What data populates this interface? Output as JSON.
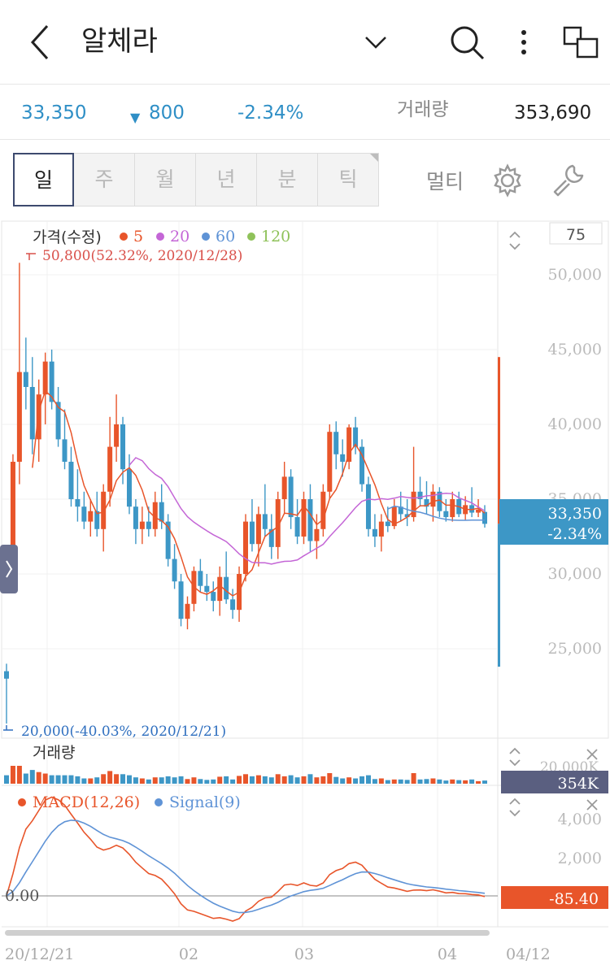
{
  "header": {
    "title": "알체라"
  },
  "quote": {
    "price": "33,350",
    "change": "800",
    "change_pct": "-2.34%",
    "volume_label": "거래량",
    "volume": "353,690"
  },
  "tabs": [
    {
      "label": "일",
      "active": true
    },
    {
      "label": "주",
      "active": false
    },
    {
      "label": "월",
      "active": false
    },
    {
      "label": "년",
      "active": false
    },
    {
      "label": "분",
      "active": false
    },
    {
      "label": "틱",
      "active": false
    }
  ],
  "multi_label": "멀티",
  "colors": {
    "up": "#e8552a",
    "down": "#3d97c6",
    "ma5": "#e8552a",
    "ma20": "#c466d6",
    "ma60": "#5f93d6",
    "ma120": "#8fc25a",
    "current_price_bg": "#3d97c6",
    "volume_badge_bg": "#5a5f80",
    "macd_badge_bg": "#e8552a"
  },
  "chart_data": {
    "type": "candlestick",
    "price_panel": {
      "legend_title": "가격(수정)",
      "ma_labels": [
        "5",
        "20",
        "60",
        "120"
      ],
      "bars_visible": "75",
      "high_annotation": "50,800(52.32%, 2020/12/28)",
      "low_annotation": "20,000(-40.03%, 2020/12/21)",
      "y_ticks": [
        "50,000",
        "45,000",
        "40,000",
        "35,000",
        "30,000",
        "25,000"
      ],
      "current_price": "33,350",
      "current_pct": "-2.34%",
      "ohlc": [
        [
          23500,
          24000,
          20000,
          23000
        ],
        [
          30000,
          38000,
          29500,
          37500
        ],
        [
          37500,
          50800,
          36000,
          43500
        ],
        [
          43500,
          45800,
          41000,
          42500
        ],
        [
          42500,
          44500,
          38000,
          39000
        ],
        [
          39000,
          43000,
          37500,
          42000
        ],
        [
          42000,
          44800,
          40000,
          44200
        ],
        [
          44200,
          45000,
          41000,
          41500
        ],
        [
          41500,
          42500,
          38500,
          39000
        ],
        [
          39000,
          41000,
          37000,
          37500
        ],
        [
          37500,
          38500,
          34500,
          35000
        ],
        [
          35000,
          37000,
          33500,
          34500
        ],
        [
          34500,
          35500,
          33000,
          33500
        ],
        [
          33500,
          35000,
          32500,
          34200
        ],
        [
          34200,
          35500,
          32500,
          33000
        ],
        [
          33000,
          36000,
          31500,
          35500
        ],
        [
          35500,
          40500,
          34500,
          38500
        ],
        [
          38500,
          42000,
          37500,
          40000
        ],
        [
          40000,
          40500,
          36000,
          37000
        ],
        [
          37000,
          38000,
          34000,
          34500
        ],
        [
          34500,
          35000,
          32000,
          33000
        ],
        [
          33000,
          34500,
          32000,
          33500
        ],
        [
          33500,
          34500,
          32500,
          33000
        ],
        [
          33000,
          35500,
          32500,
          34800
        ],
        [
          34800,
          36000,
          33000,
          33500
        ],
        [
          33500,
          34000,
          30500,
          31000
        ],
        [
          31000,
          32000,
          29000,
          29500
        ],
        [
          29500,
          30000,
          26500,
          27000
        ],
        [
          27000,
          28500,
          26300,
          28000
        ],
        [
          28000,
          30500,
          27500,
          30200
        ],
        [
          30200,
          31000,
          28800,
          29200
        ],
        [
          29200,
          30000,
          28200,
          28800
        ],
        [
          28800,
          29500,
          27500,
          28200
        ],
        [
          28200,
          30500,
          27200,
          29800
        ],
        [
          29800,
          31500,
          28000,
          28300
        ],
        [
          28300,
          29000,
          27000,
          27600
        ],
        [
          27600,
          30500,
          26800,
          30000
        ],
        [
          30000,
          34000,
          29500,
          33500
        ],
        [
          33500,
          35000,
          31500,
          32000
        ],
        [
          32000,
          34500,
          30500,
          34000
        ],
        [
          34000,
          36000,
          32500,
          33000
        ],
        [
          33000,
          34000,
          31000,
          31800
        ],
        [
          31800,
          35500,
          31000,
          35000
        ],
        [
          35000,
          37500,
          34000,
          36500
        ],
        [
          36500,
          37000,
          33000,
          33800
        ],
        [
          33800,
          35000,
          32000,
          32500
        ],
        [
          32500,
          35500,
          32000,
          35000
        ],
        [
          35000,
          36000,
          31500,
          32200
        ],
        [
          32200,
          34000,
          31000,
          33000
        ],
        [
          33000,
          36000,
          32500,
          35500
        ],
        [
          35500,
          40000,
          35000,
          39500
        ],
        [
          39500,
          40200,
          37000,
          38000
        ],
        [
          38000,
          39000,
          36500,
          37500
        ],
        [
          37500,
          40000,
          37000,
          39800
        ],
        [
          39800,
          40500,
          38000,
          38500
        ],
        [
          38500,
          39000,
          35500,
          36000
        ],
        [
          36000,
          36500,
          32500,
          33000
        ],
        [
          33000,
          34000,
          31800,
          32500
        ],
        [
          32500,
          34000,
          31500,
          33500
        ],
        [
          33500,
          34500,
          32800,
          33200
        ],
        [
          33200,
          35000,
          33000,
          34500
        ],
        [
          34500,
          35500,
          33500,
          34000
        ],
        [
          34000,
          35000,
          33200,
          33800
        ],
        [
          33800,
          38500,
          33500,
          35500
        ],
        [
          35500,
          36500,
          34500,
          35000
        ],
        [
          35000,
          36200,
          34000,
          34500
        ],
        [
          34500,
          36000,
          33500,
          35500
        ],
        [
          35500,
          35800,
          33800,
          34200
        ],
        [
          34200,
          35000,
          33500,
          33800
        ],
        [
          33800,
          35500,
          33500,
          35000
        ],
        [
          35000,
          35500,
          33800,
          34000
        ],
        [
          34000,
          35200,
          33600,
          34600
        ],
        [
          34600,
          35800,
          33800,
          34100
        ],
        [
          34100,
          35000,
          33800,
          34300
        ],
        [
          34150,
          34600,
          33100,
          33350
        ]
      ]
    },
    "volume_panel": {
      "title": "거래량",
      "y_tick": "20,000K",
      "current_value": "354K"
    },
    "macd_panel": {
      "legend": [
        "MACD(12,26)",
        "Signal(9)"
      ],
      "y_ticks": [
        "4,000",
        "2,000",
        "0.00"
      ],
      "current_value": "-85.40"
    },
    "x_ticks": [
      "20/12/21",
      "02",
      "03",
      "04",
      "04/12"
    ]
  }
}
